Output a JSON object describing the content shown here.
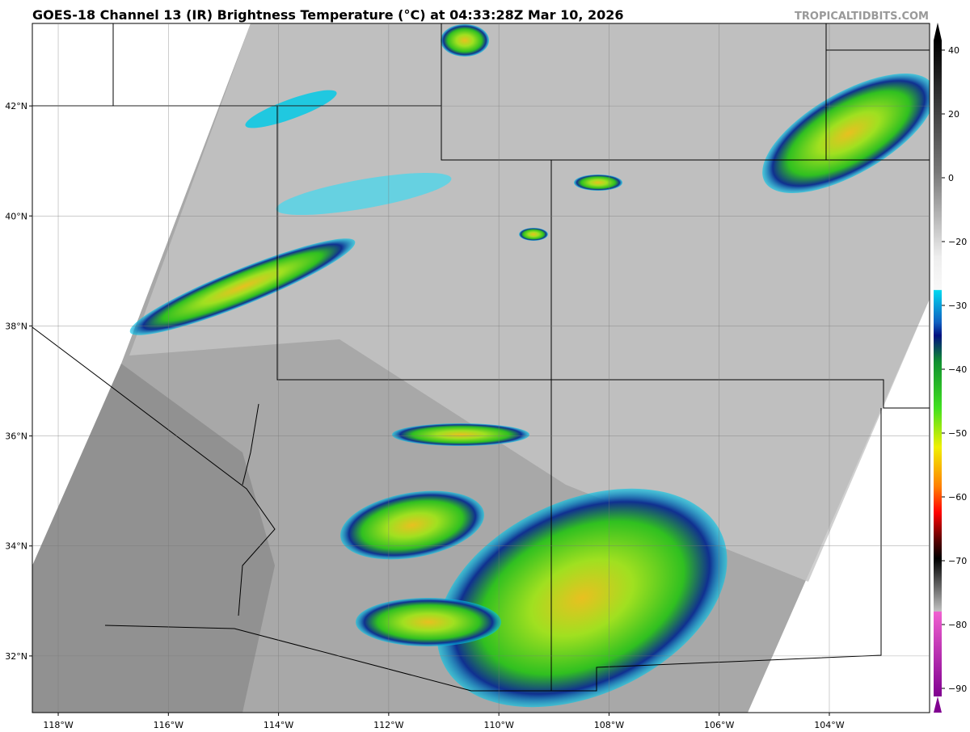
{
  "title": "GOES-18 Channel 13 (IR) Brightness Temperature (°C) at 04:33:28Z Mar 10, 2026",
  "watermark": "TROPICALTIDBITS.COM",
  "map": {
    "xlim": [
      -118.47,
      -102.18
    ],
    "ylim": [
      30.97,
      43.5
    ],
    "xticks": [
      {
        "value": -118,
        "label": "118°W"
      },
      {
        "value": -116,
        "label": "116°W"
      },
      {
        "value": -114,
        "label": "114°W"
      },
      {
        "value": -112,
        "label": "112°W"
      },
      {
        "value": -110,
        "label": "110°W"
      },
      {
        "value": -108,
        "label": "108°W"
      },
      {
        "value": -106,
        "label": "106°W"
      },
      {
        "value": -104,
        "label": "104°W"
      }
    ],
    "yticks": [
      {
        "value": 42,
        "label": "42°N"
      },
      {
        "value": 40,
        "label": "40°N"
      },
      {
        "value": 38,
        "label": "38°N"
      },
      {
        "value": 36,
        "label": "36°N"
      },
      {
        "value": 34,
        "label": "34°N"
      },
      {
        "value": 32,
        "label": "32°N"
      }
    ],
    "grid": true
  },
  "colorbar": {
    "ticks": [
      40,
      20,
      0,
      {
        "value": -20,
        "label": "−20"
      },
      {
        "value": -30,
        "label": "−30"
      },
      {
        "value": -40,
        "label": "−40"
      },
      {
        "value": -50,
        "label": "−50"
      },
      {
        "value": -60,
        "label": "−60"
      },
      {
        "value": -70,
        "label": "−70"
      },
      {
        "value": -80,
        "label": "−80"
      },
      {
        "value": -90,
        "label": "−90"
      }
    ]
  }
}
